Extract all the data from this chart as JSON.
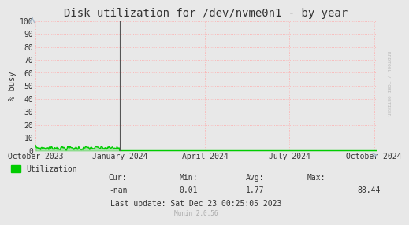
{
  "title": "Disk utilization for /dev/nvme0n1 - by year",
  "ylabel": "% busy",
  "background_color": "#e8e8e8",
  "plot_bg_color": "#e8e8e8",
  "grid_color": "#ffaaaa",
  "ylim": [
    0,
    100
  ],
  "yticks": [
    0,
    10,
    20,
    30,
    40,
    50,
    60,
    70,
    80,
    90,
    100
  ],
  "xtick_labels": [
    "October 2023",
    "January 2024",
    "April 2024",
    "July 2024",
    "October 2024"
  ],
  "xtick_positions": [
    0.0,
    0.247,
    0.497,
    0.745,
    0.993
  ],
  "line_color": "#00cc00",
  "line_width": 1.0,
  "vline_color": "#555555",
  "vline_x": 0.247,
  "legend_label": "Utilization",
  "legend_color": "#00cc00",
  "last_update": "Last update: Sat Dec 23 00:25:05 2023",
  "munin_version": "Munin 2.0.56",
  "rrdtool_text": "RRDTOOL / TOBI OETIKER",
  "title_fontsize": 10,
  "axis_label_fontsize": 7.5,
  "tick_fontsize": 7,
  "stats_fontsize": 7,
  "arrow_color": "#aabbcc",
  "font_color": "#333333",
  "stats_label_color": "#333333",
  "munin_color": "#aaaaaa",
  "rrd_color": "#bbbbbb"
}
